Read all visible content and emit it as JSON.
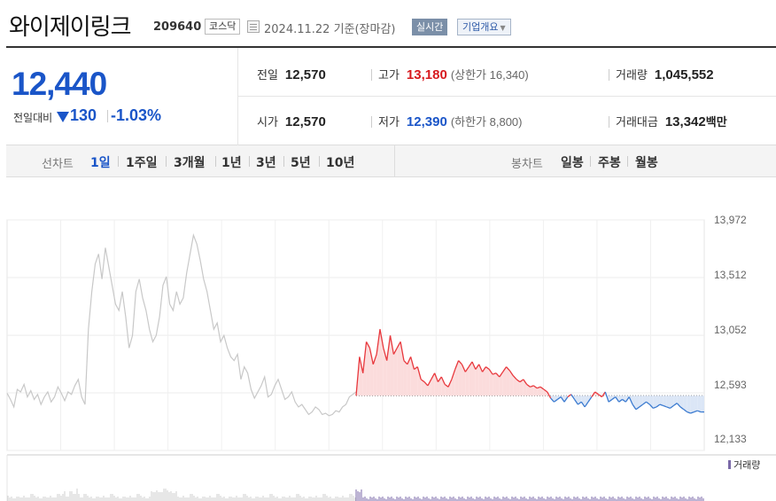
{
  "header": {
    "name": "와이제이링크",
    "code": "209640",
    "market": "코스닥",
    "date": "2024.11.22  기준(장마감)",
    "realtime": "실시간",
    "company": "기업개요"
  },
  "summary": {
    "price": "12,440",
    "change_label": "전일대비",
    "change": "130",
    "change_pct": "-1.03%",
    "prev_label": "전일",
    "prev": "12,570",
    "open_label": "시가",
    "open": "12,570",
    "high_label": "고가",
    "high": "13,180",
    "upper_limit": "(상한가 16,340)",
    "low_label": "저가",
    "low": "12,390",
    "lower_limit": "(하한가 8,800)",
    "volume_label": "거래량",
    "volume": "1,045,552",
    "amount_label": "거래대금",
    "amount": "13,342",
    "amount_unit": "백만"
  },
  "tabs": {
    "line_label": "선차트",
    "line": [
      "1일",
      "1주일",
      "3개월",
      "1년",
      "3년",
      "5년",
      "10년"
    ],
    "candle_label": "봉차트",
    "candle": [
      "일봉",
      "주봉",
      "월봉"
    ]
  },
  "colors": {
    "up": "#d7191e",
    "down": "#1a55c8",
    "line_red": "#e8383d",
    "line_blue": "#3c7bd0",
    "prev_line": "#c8c8c8",
    "volume": "#7b6aa8"
  },
  "chart_data": {
    "type": "line",
    "yticks": [
      "13,972",
      "13,512",
      "13,052",
      "12,593",
      "12,133"
    ],
    "ylim": [
      12133,
      13972
    ],
    "base": 12570,
    "volume_legend": "거래량",
    "prev_day": [
      12590,
      12540,
      12480,
      12620,
      12600,
      12660,
      12560,
      12610,
      12540,
      12580,
      12500,
      12560,
      12600,
      12520,
      12560,
      12640,
      12590,
      12530,
      12600,
      12580,
      12650,
      12700,
      12560,
      12500,
      13100,
      13400,
      13620,
      13700,
      13500,
      13750,
      13600,
      13450,
      13300,
      13250,
      13400,
      13200,
      12950,
      13050,
      13400,
      13500,
      13350,
      13250,
      13100,
      13000,
      13050,
      13200,
      13450,
      13520,
      13300,
      13250,
      13400,
      13300,
      13350,
      13550,
      13700,
      13850,
      13780,
      13650,
      13500,
      13400,
      13250,
      13100,
      13150,
      13000,
      13050,
      12950,
      12880,
      12850,
      12900,
      12700,
      12800,
      12750,
      12620,
      12550,
      12600,
      12650,
      12720,
      12560,
      12580,
      12650,
      12700,
      12620,
      12540,
      12560,
      12600,
      12520,
      12480,
      12500,
      12460,
      12420,
      12440,
      12480,
      12460,
      12420,
      12430,
      12410,
      12420,
      12450,
      12440,
      12480,
      12500,
      12560,
      12580,
      12600
    ],
    "today": [
      12570,
      12880,
      12750,
      13000,
      12950,
      12820,
      12900,
      13100,
      12950,
      12850,
      13050,
      12900,
      12950,
      13000,
      12850,
      12820,
      12880,
      12780,
      12800,
      12700,
      12680,
      12650,
      12700,
      12750,
      12680,
      12720,
      12660,
      12640,
      12700,
      12780,
      12850,
      12820,
      12760,
      12800,
      12840,
      12780,
      12820,
      12760,
      12800,
      12780,
      12740,
      12750,
      12720,
      12760,
      12800,
      12770,
      12730,
      12700,
      12680,
      12700,
      12660,
      12640,
      12650,
      12630,
      12640,
      12620,
      12600,
      12550,
      12520,
      12540,
      12560,
      12520,
      12560,
      12580,
      12540,
      12500,
      12520,
      12480,
      12520,
      12560,
      12600,
      12580,
      12560,
      12600,
      12520,
      12540,
      12560,
      12520,
      12540,
      12520,
      12560,
      12500,
      12460,
      12480,
      12500,
      12520,
      12500,
      12470,
      12480,
      12500,
      12490,
      12480,
      12470,
      12490,
      12510,
      12480,
      12460,
      12440,
      12430,
      12440,
      12450,
      12440,
      12440
    ]
  }
}
